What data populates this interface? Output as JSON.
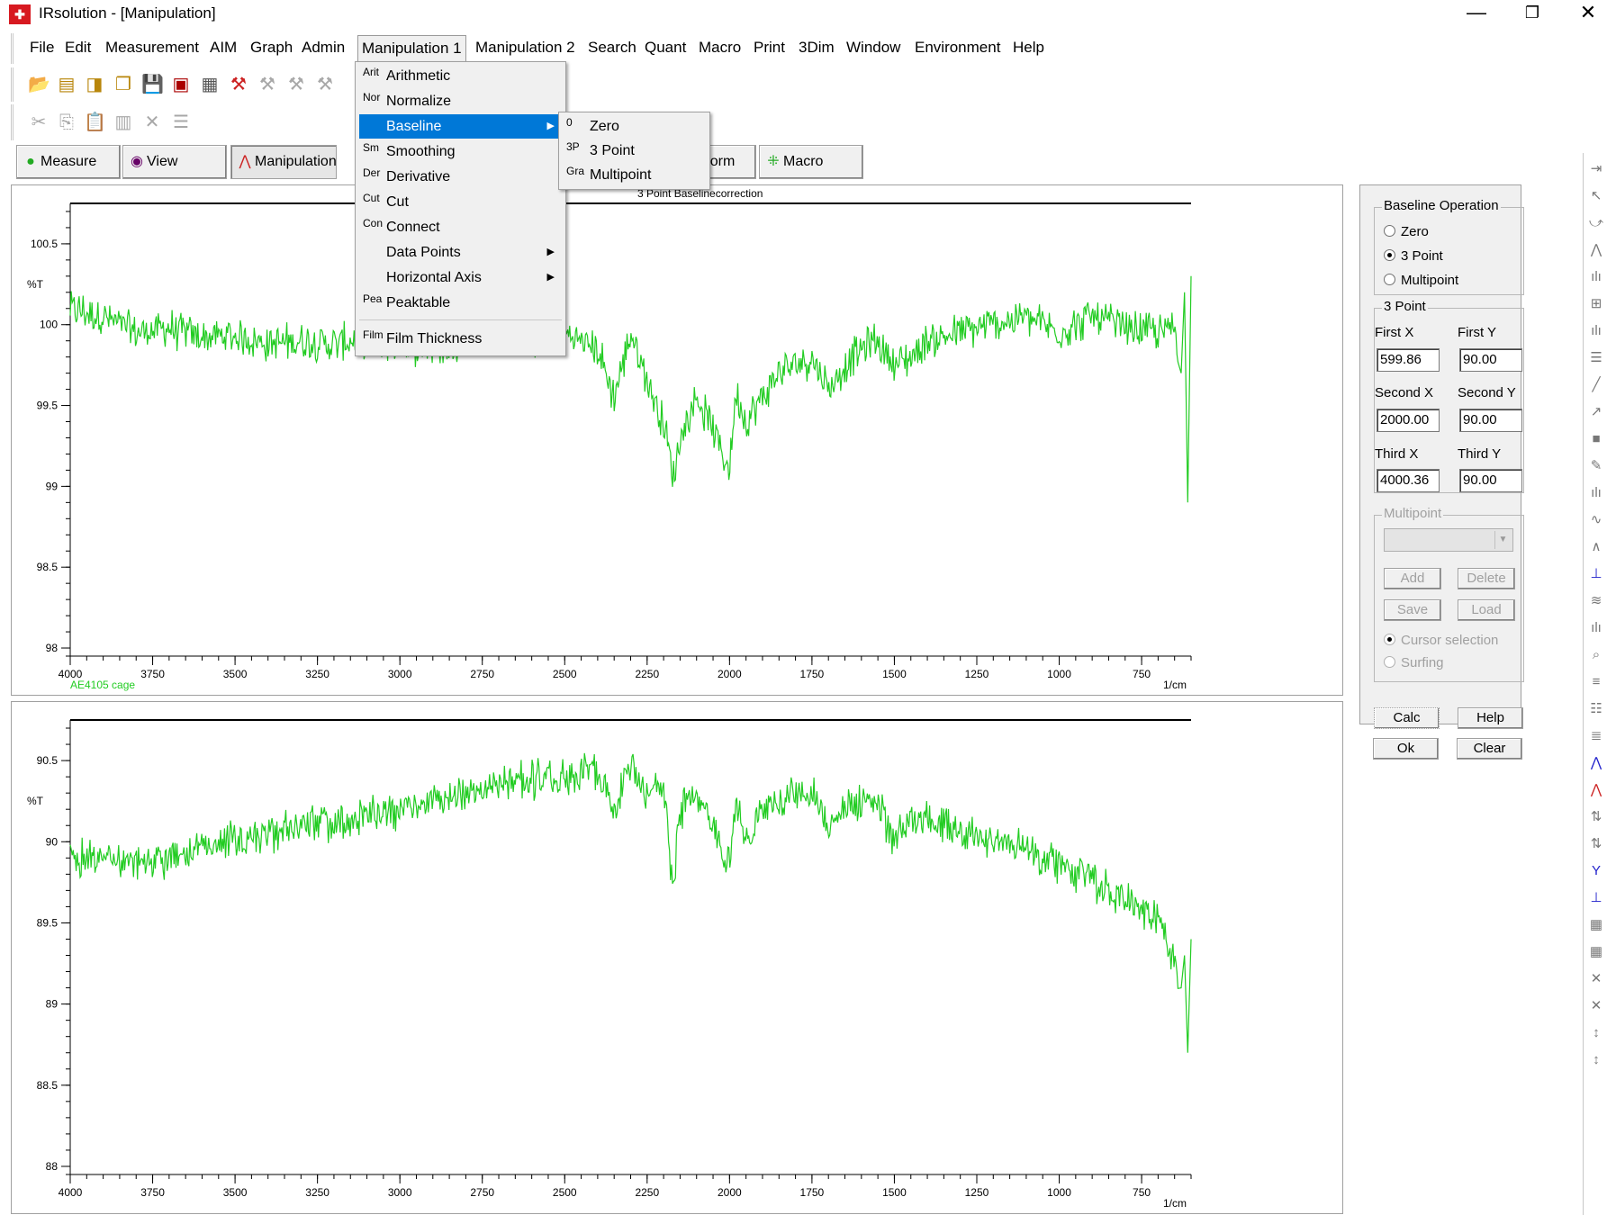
{
  "window": {
    "title": "IRsolution - [Manipulation]",
    "minimize": "—",
    "restore": "❐",
    "close": "✕"
  },
  "menubar": [
    "File",
    "Edit",
    "Measurement",
    "AIM",
    "Graph",
    "Admin",
    "Manipulation 1",
    "Manipulation 2",
    "Search",
    "Quant",
    "Macro",
    "Print",
    "3Dim",
    "Window",
    "Environment",
    "Help"
  ],
  "mode_tabs": {
    "measure": "Measure",
    "view": "View",
    "manipulation": "Manipulation",
    "form": "Form",
    "macro": "Macro"
  },
  "dropdown": {
    "items": [
      {
        "abbr": "Arit",
        "label": "Arithmetic"
      },
      {
        "abbr": "Nor",
        "label": "Normalize"
      },
      {
        "abbr": "",
        "label": "Baseline"
      },
      {
        "abbr": "Sm",
        "label": "Smoothing"
      },
      {
        "abbr": "Der",
        "label": "Derivative"
      },
      {
        "abbr": "Cut",
        "label": "Cut"
      },
      {
        "abbr": "Con",
        "label": "Connect"
      },
      {
        "abbr": "",
        "label": "Data Points"
      },
      {
        "abbr": "",
        "label": "Horizontal Axis"
      },
      {
        "abbr": "Pea",
        "label": "Peaktable"
      },
      {
        "abbr": "Film",
        "label": "Film Thickness"
      }
    ],
    "submenu": [
      {
        "abbr": "0",
        "label": "Zero"
      },
      {
        "abbr": "3P",
        "label": "3 Point"
      },
      {
        "abbr": "Gra",
        "label": "Multipoint"
      }
    ]
  },
  "right_panel": {
    "baseline_group": "Baseline Operation",
    "radio_zero": "Zero",
    "radio_3point": "3 Point",
    "radio_multipoint": "Multipoint",
    "selected_operation": "3 Point",
    "three_point_group": "3 Point",
    "first_x_label": "First X",
    "first_y_label": "First Y",
    "first_x": "599.86",
    "first_y": "90.00",
    "second_x_label": "Second X",
    "second_y_label": "Second Y",
    "second_x": "2000.00",
    "second_y": "90.00",
    "third_x_label": "Third X",
    "third_y_label": "Third Y",
    "third_x": "4000.36",
    "third_y": "90.00",
    "multipoint_group": "Multipoint",
    "add": "Add",
    "delete": "Delete",
    "save": "Save",
    "load": "Load",
    "cursor_selection": "Cursor selection",
    "surfing": "Surfing",
    "calc": "Calc",
    "help": "Help",
    "ok": "Ok",
    "clear": "Clear"
  },
  "colors": {
    "trace": "#22cc22",
    "highlight": "#0078d7"
  },
  "chart_data": [
    {
      "type": "line",
      "title": "3 Point Baselinecorrection",
      "trace_label": "AE4105 cage",
      "xlabel": "1/cm",
      "ylabel": "%T",
      "xlim": [
        4000,
        600
      ],
      "ylim": [
        97.95,
        100.75
      ],
      "y_ticks": [
        "100.5",
        "100",
        "99.5",
        "99",
        "98.5",
        "98"
      ],
      "x_ticks": [
        "4000",
        "3750",
        "3500",
        "3250",
        "3000",
        "2750",
        "2500",
        "2250",
        "2000",
        "1750",
        "1500",
        "1250",
        "1000",
        "750"
      ],
      "x": [
        4000,
        3900,
        3800,
        3700,
        3600,
        3500,
        3400,
        3300,
        3200,
        3100,
        3000,
        2900,
        2800,
        2700,
        2600,
        2500,
        2400,
        2350,
        2300,
        2250,
        2200,
        2170,
        2150,
        2100,
        2050,
        2000,
        1980,
        1950,
        1900,
        1850,
        1800,
        1750,
        1700,
        1650,
        1600,
        1550,
        1500,
        1450,
        1400,
        1300,
        1200,
        1100,
        1000,
        900,
        800,
        700,
        650,
        630,
        620,
        610,
        600
      ],
      "y": [
        100.1,
        100.05,
        99.95,
        99.98,
        99.92,
        99.93,
        99.88,
        99.9,
        99.88,
        99.92,
        99.88,
        99.85,
        99.9,
        99.95,
        99.9,
        99.95,
        99.85,
        99.55,
        99.95,
        99.65,
        99.4,
        99.05,
        99.3,
        99.55,
        99.35,
        99.1,
        99.6,
        99.4,
        99.55,
        99.7,
        99.75,
        99.8,
        99.6,
        99.75,
        99.85,
        99.9,
        99.75,
        99.8,
        99.9,
        99.95,
        100.0,
        100.05,
        99.95,
        100.05,
        99.98,
        99.95,
        100.0,
        99.7,
        100.2,
        98.9,
        100.3
      ]
    },
    {
      "type": "line",
      "xlabel": "1/cm",
      "ylabel": "%T",
      "xlim": [
        4000,
        600
      ],
      "ylim": [
        87.95,
        90.75
      ],
      "y_ticks": [
        "90.5",
        "90",
        "89.5",
        "89",
        "88.5",
        "88"
      ],
      "x_ticks": [
        "4000",
        "3750",
        "3500",
        "3250",
        "3000",
        "2750",
        "2500",
        "2250",
        "2000",
        "1750",
        "1500",
        "1250",
        "1000",
        "750"
      ],
      "x": [
        4000,
        3900,
        3800,
        3700,
        3600,
        3500,
        3400,
        3300,
        3200,
        3100,
        3000,
        2900,
        2800,
        2700,
        2600,
        2500,
        2400,
        2350,
        2300,
        2250,
        2200,
        2170,
        2150,
        2100,
        2050,
        2000,
        1980,
        1950,
        1900,
        1850,
        1800,
        1750,
        1700,
        1650,
        1600,
        1550,
        1500,
        1450,
        1400,
        1300,
        1200,
        1100,
        1000,
        900,
        800,
        700,
        650,
        630,
        620,
        610,
        600
      ],
      "y": [
        89.9,
        89.92,
        89.85,
        89.9,
        89.95,
        90.0,
        90.05,
        90.1,
        90.12,
        90.15,
        90.2,
        90.25,
        90.3,
        90.35,
        90.38,
        90.4,
        90.45,
        90.15,
        90.5,
        90.3,
        90.35,
        89.7,
        90.2,
        90.3,
        90.1,
        89.85,
        90.25,
        90.0,
        90.2,
        90.25,
        90.3,
        90.3,
        90.1,
        90.2,
        90.25,
        90.25,
        90.0,
        90.15,
        90.15,
        90.1,
        90.0,
        89.95,
        89.85,
        89.75,
        89.65,
        89.5,
        89.3,
        89.1,
        89.3,
        88.7,
        89.4
      ]
    }
  ]
}
